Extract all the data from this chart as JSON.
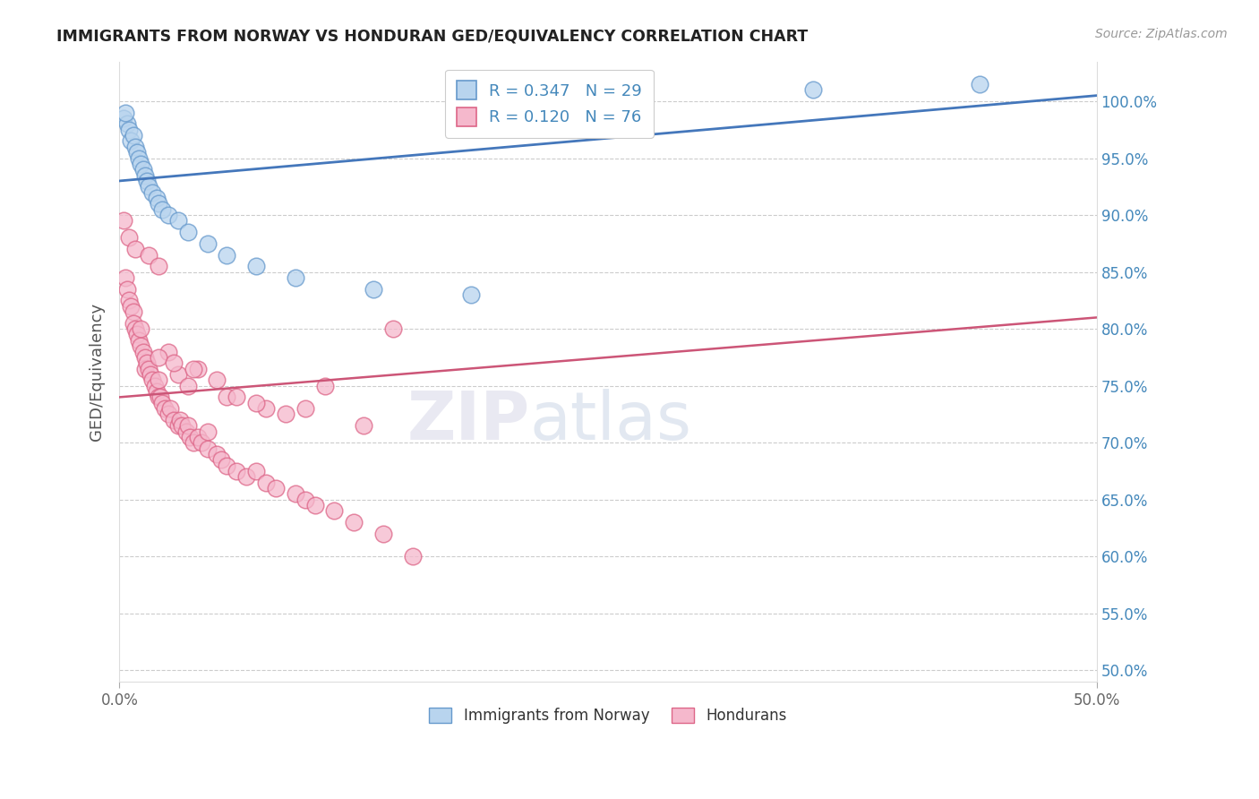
{
  "title": "IMMIGRANTS FROM NORWAY VS HONDURAN GED/EQUIVALENCY CORRELATION CHART",
  "source": "Source: ZipAtlas.com",
  "ylabel": "GED/Equivalency",
  "xlim": [
    0.0,
    50.0
  ],
  "ylim": [
    49.0,
    103.5
  ],
  "ytick_vals": [
    50.0,
    55.0,
    60.0,
    65.0,
    70.0,
    75.0,
    80.0,
    85.0,
    90.0,
    95.0,
    100.0
  ],
  "blue_R": "0.347",
  "blue_N": "29",
  "pink_R": "0.120",
  "pink_N": "76",
  "blue_dot_face": "#b8d4ee",
  "blue_dot_edge": "#6699cc",
  "pink_dot_face": "#f5b8cc",
  "pink_dot_edge": "#dd6688",
  "blue_line_color": "#4477bb",
  "pink_line_color": "#cc5577",
  "legend_blue": "Immigrants from Norway",
  "legend_pink": "Hondurans",
  "blue_dots_x": [
    0.2,
    0.4,
    0.5,
    0.6,
    0.7,
    0.8,
    0.9,
    1.0,
    1.1,
    1.2,
    1.3,
    1.4,
    1.5,
    1.7,
    1.9,
    2.0,
    2.2,
    2.5,
    3.0,
    3.5,
    4.5,
    5.5,
    7.0,
    9.0,
    13.0,
    18.0,
    35.5,
    44.0,
    0.3
  ],
  "blue_dots_y": [
    98.5,
    98.0,
    97.5,
    96.5,
    97.0,
    96.0,
    95.5,
    95.0,
    94.5,
    94.0,
    93.5,
    93.0,
    92.5,
    92.0,
    91.5,
    91.0,
    90.5,
    90.0,
    89.5,
    88.5,
    87.5,
    86.5,
    85.5,
    84.5,
    83.5,
    83.0,
    101.0,
    101.5,
    99.0
  ],
  "pink_dots_x": [
    0.3,
    0.4,
    0.5,
    0.6,
    0.7,
    0.7,
    0.8,
    0.9,
    1.0,
    1.1,
    1.1,
    1.2,
    1.3,
    1.3,
    1.4,
    1.5,
    1.6,
    1.7,
    1.8,
    1.9,
    2.0,
    2.0,
    2.1,
    2.2,
    2.3,
    2.5,
    2.6,
    2.8,
    3.0,
    3.1,
    3.2,
    3.4,
    3.5,
    3.6,
    3.8,
    4.0,
    4.2,
    4.5,
    5.0,
    5.2,
    5.5,
    6.0,
    6.5,
    7.0,
    7.5,
    8.0,
    9.0,
    9.5,
    10.0,
    11.0,
    12.0,
    13.5,
    15.0,
    5.5,
    7.5,
    8.5,
    4.5,
    3.0,
    3.5,
    6.0,
    9.5,
    12.5,
    4.0,
    5.0,
    2.5,
    2.0,
    2.8,
    3.8,
    0.5,
    0.8,
    1.5,
    2.0,
    14.0,
    10.5,
    7.0,
    0.2
  ],
  "pink_dots_y": [
    84.5,
    83.5,
    82.5,
    82.0,
    81.5,
    80.5,
    80.0,
    79.5,
    79.0,
    78.5,
    80.0,
    78.0,
    77.5,
    76.5,
    77.0,
    76.5,
    76.0,
    75.5,
    75.0,
    74.5,
    74.0,
    75.5,
    74.0,
    73.5,
    73.0,
    72.5,
    73.0,
    72.0,
    71.5,
    72.0,
    71.5,
    71.0,
    71.5,
    70.5,
    70.0,
    70.5,
    70.0,
    69.5,
    69.0,
    68.5,
    68.0,
    67.5,
    67.0,
    67.5,
    66.5,
    66.0,
    65.5,
    65.0,
    64.5,
    64.0,
    63.0,
    62.0,
    60.0,
    74.0,
    73.0,
    72.5,
    71.0,
    76.0,
    75.0,
    74.0,
    73.0,
    71.5,
    76.5,
    75.5,
    78.0,
    77.5,
    77.0,
    76.5,
    88.0,
    87.0,
    86.5,
    85.5,
    80.0,
    75.0,
    73.5,
    89.5
  ]
}
